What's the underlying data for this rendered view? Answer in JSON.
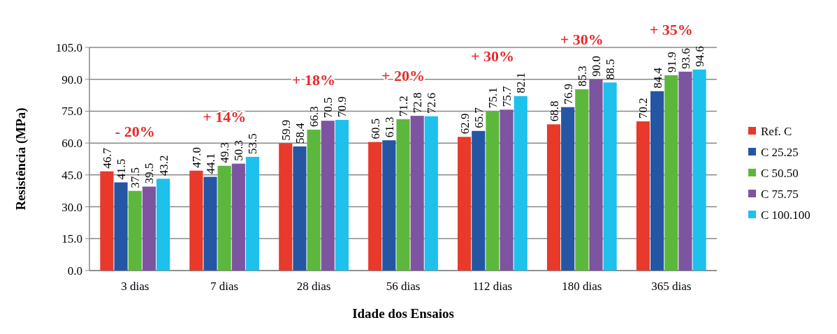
{
  "chart_data": {
    "type": "bar",
    "xlabel": "Idade dos Ensaios",
    "ylabel": "Resistência (MPa)",
    "categories": [
      "3 dias",
      "7 dias",
      "28 dias",
      "56 dias",
      "112 dias",
      "180 dias",
      "365 dias"
    ],
    "series": [
      {
        "name": "Ref. C",
        "color": "#e8392a",
        "values": [
          46.7,
          47.0,
          59.9,
          60.5,
          62.9,
          68.8,
          70.2
        ],
        "value_labels": [
          "46.7",
          "47.0",
          "59.9",
          "60.5",
          "62.9",
          "68.8",
          "70.2"
        ]
      },
      {
        "name": "C 25.25",
        "color": "#2456a4",
        "values": [
          41.5,
          44.1,
          58.4,
          61.3,
          65.7,
          76.9,
          84.4
        ],
        "value_labels": [
          "41.5",
          "44.1",
          "58.4",
          "61.3",
          "65.7",
          "76.9",
          "84.4"
        ]
      },
      {
        "name": "C 50.50",
        "color": "#5cb83c",
        "values": [
          37.5,
          49.3,
          66.3,
          71.2,
          75.1,
          85.3,
          91.9
        ],
        "value_labels": [
          "37.5",
          "49.3",
          "66.3",
          "71.2",
          "75.1",
          "85.3",
          "91.9"
        ]
      },
      {
        "name": "C 75.75",
        "color": "#7d54a0",
        "values": [
          39.5,
          50.3,
          70.5,
          72.8,
          75.7,
          90.0,
          93.6
        ],
        "value_labels": [
          "39.5",
          "50.3",
          "70.5",
          "72.8",
          "75.7",
          "90.0",
          "93.6"
        ]
      },
      {
        "name": "C 100.100",
        "color": "#1ec0ec",
        "values": [
          43.2,
          53.5,
          70.9,
          72.6,
          82.1,
          88.5,
          94.6
        ],
        "value_labels": [
          "43.2",
          "53.5",
          "70.9",
          "72.6",
          "82.1",
          "88.5",
          "94.6"
        ]
      }
    ],
    "ylim": [
      0,
      105
    ],
    "yticks": [
      {
        "value": 0,
        "label": "0.0"
      },
      {
        "value": 15,
        "label": "15.0"
      },
      {
        "value": 30,
        "label": "30.0"
      },
      {
        "value": 45,
        "label": "45.0"
      },
      {
        "value": 60,
        "label": "60.0"
      },
      {
        "value": 75,
        "label": "75.0"
      },
      {
        "value": 90,
        "label": "90.0"
      },
      {
        "value": 105,
        "label": "105.0"
      }
    ],
    "grid": "y",
    "legend": "right",
    "annotations": [
      "- 20%",
      "+ 14%",
      "+ 18%",
      "+ 20%",
      "+ 30%",
      "+ 30%",
      "+ 35%"
    ]
  }
}
